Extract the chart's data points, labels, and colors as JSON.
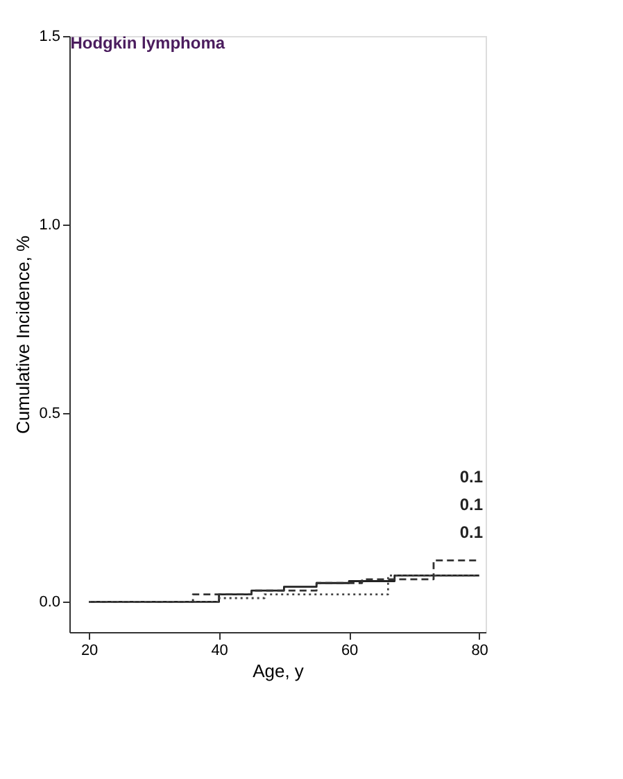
{
  "chart_data": {
    "type": "step",
    "title": "Hodgkin lymphoma",
    "xlabel": "Age, y",
    "ylabel": "Cumulative Incidence, %",
    "xlim": [
      17,
      81
    ],
    "xticks": [
      20,
      40,
      60,
      80
    ],
    "ylim": [
      -0.08,
      1.5
    ],
    "yticks": [
      {
        "value": 0,
        "label": "0.0"
      },
      0.5,
      {
        "value": 1,
        "label": "1.0"
      },
      1.5
    ],
    "grid": false,
    "marker": "none",
    "series": [
      {
        "color": "#222222",
        "line_style": "solid",
        "x": [
          20,
          35,
          40,
          45,
          50,
          55,
          60,
          67,
          80
        ],
        "values": [
          0,
          0.0,
          0.02,
          0.03,
          0.04,
          0.05,
          0.055,
          0.07,
          0.07
        ]
      },
      {
        "color": "#333333",
        "line_style": "dashed",
        "x": [
          20,
          36,
          45,
          55,
          62,
          73,
          80
        ],
        "values": [
          0,
          0.02,
          0.03,
          0.05,
          0.06,
          0.11,
          0.11
        ]
      },
      {
        "color": "#444444",
        "line_style": "dotted",
        "x": [
          20,
          40,
          47,
          66,
          80
        ],
        "values": [
          0,
          0.01,
          0.02,
          0.07,
          0.07
        ]
      }
    ],
    "annotations": [
      "0.1",
      "0.1",
      "0.1"
    ]
  }
}
